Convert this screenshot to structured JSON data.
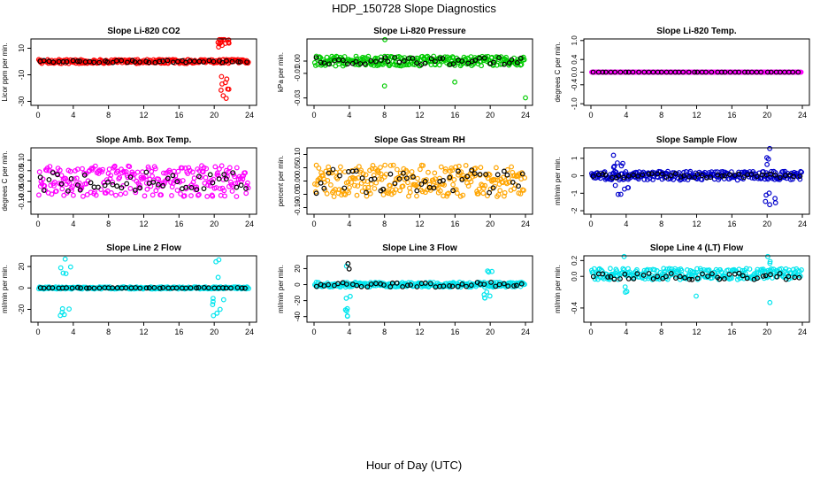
{
  "figure": {
    "title": "HDP_150728  Slope Diagnostics",
    "xlabel": "Hour of Day (UTC)"
  },
  "chart_data": [
    {
      "type": "scatter",
      "title": "Slope Li-820 CO2",
      "ylabel": "Licor ppm per min.",
      "xlim": [
        0,
        24
      ],
      "ylim": [
        -33,
        17
      ],
      "xticks": [
        0,
        4,
        8,
        12,
        16,
        20,
        24
      ],
      "yticks": [
        -30,
        -10,
        10
      ],
      "xtick_labels": [
        "0",
        "4",
        "8",
        "12",
        "16",
        "20",
        "24"
      ],
      "ytick_labels": [
        "-30",
        "-10",
        "10"
      ],
      "series": [
        {
          "name": "raw",
          "color": "#ff0000",
          "pattern": {
            "base": 0,
            "noise": 1.5,
            "spikes": [
              {
                "from": 20.3,
                "to": 21.8,
                "amp": 28,
                "n": 22
              }
            ]
          }
        },
        {
          "name": "hourly",
          "color": "#000000",
          "pattern": {
            "base": 0,
            "noise": 0.8,
            "spikes": []
          }
        }
      ]
    },
    {
      "type": "scatter",
      "title": "Slope Li-820 Pressure",
      "ylabel": "kPa per min.",
      "xlim": [
        0,
        24
      ],
      "ylim": [
        -0.036,
        0.018
      ],
      "xticks": [
        0,
        4,
        8,
        12,
        16,
        20,
        24
      ],
      "yticks": [
        -0.03,
        -0.01,
        0.0
      ],
      "xtick_labels": [
        "0",
        "4",
        "8",
        "12",
        "16",
        "20",
        "24"
      ],
      "ytick_labels": [
        "-0.03",
        "-0.01",
        "0.00"
      ],
      "series": [
        {
          "name": "raw",
          "color": "#00cc00",
          "pattern": {
            "base": 0.0,
            "noise": 0.004,
            "spikes": [
              {
                "from": 7.9,
                "to": 8.1,
                "amp": 0.03,
                "n": 2
              },
              {
                "from": 15.9,
                "to": 16.1,
                "amp": 0.027,
                "n": 1
              },
              {
                "from": 23.9,
                "to": 24.0,
                "amp": 0.034,
                "n": 1
              }
            ]
          }
        },
        {
          "name": "hourly",
          "color": "#000000",
          "pattern": {
            "base": 0.0,
            "noise": 0.003,
            "spikes": []
          }
        }
      ]
    },
    {
      "type": "scatter",
      "title": "Slope Li-820 Temp.",
      "ylabel": "degrees C per min.",
      "xlim": [
        0,
        24
      ],
      "ylim": [
        -1.05,
        1.05
      ],
      "xticks": [
        0,
        4,
        8,
        12,
        16,
        20,
        24
      ],
      "yticks": [
        -1.0,
        -0.4,
        0.0,
        0.4,
        1.0
      ],
      "xtick_labels": [
        "0",
        "4",
        "8",
        "12",
        "16",
        "20",
        "24"
      ],
      "ytick_labels": [
        "-1.0",
        "-0.4",
        "0.0",
        "0.4",
        "1.0"
      ],
      "series": [
        {
          "name": "raw",
          "color": "#ff00ff",
          "pattern": {
            "base": 0.0,
            "noise": 0.0,
            "spikes": []
          }
        },
        {
          "name": "hourly",
          "color": "#000000",
          "pattern": {
            "base": 0.0,
            "noise": 0.0,
            "spikes": []
          }
        }
      ]
    },
    {
      "type": "scatter",
      "title": "Slope Amb. Box Temp.",
      "ylabel": "degrees C per min.",
      "xlim": [
        0,
        24
      ],
      "ylim": [
        -0.16,
        0.16
      ],
      "xticks": [
        0,
        4,
        8,
        12,
        16,
        20,
        24
      ],
      "yticks": [
        -0.1,
        -0.05,
        0.0,
        0.05,
        0.1
      ],
      "xtick_labels": [
        "0",
        "4",
        "8",
        "12",
        "16",
        "20",
        "24"
      ],
      "ytick_labels": [
        "-0.10",
        "-0.05",
        "0.00",
        "0.05",
        "0.10"
      ],
      "series": [
        {
          "name": "raw",
          "color": "#ff00ff",
          "pattern": {
            "base": 0.0,
            "noise": 0.075,
            "spikes": []
          }
        },
        {
          "name": "hourly",
          "color": "#000000",
          "pattern": {
            "base": 0.0,
            "noise": 0.05,
            "spikes": []
          }
        }
      ]
    },
    {
      "type": "scatter",
      "title": "Slope Gas Stream RH",
      "ylabel": "percent per min.",
      "xlim": [
        0,
        24
      ],
      "ylim": [
        -0.125,
        0.125
      ],
      "xticks": [
        0,
        4,
        8,
        12,
        16,
        20,
        24
      ],
      "yticks": [
        -0.1,
        -0.05,
        0.0,
        0.05,
        0.1
      ],
      "xtick_labels": [
        "0",
        "4",
        "8",
        "12",
        "16",
        "20",
        "24"
      ],
      "ytick_labels": [
        "-0.10",
        "-0.05",
        "0.00",
        "0.05",
        "0.10"
      ],
      "series": [
        {
          "name": "raw",
          "color": "#ffa500",
          "pattern": {
            "base": 0.0,
            "noise": 0.06,
            "spikes": []
          }
        },
        {
          "name": "hourly",
          "color": "#000000",
          "pattern": {
            "base": 0.0,
            "noise": 0.05,
            "spikes": []
          }
        }
      ]
    },
    {
      "type": "scatter",
      "title": "Slope Sample Flow",
      "ylabel": "ml/min per min.",
      "xlim": [
        0,
        24
      ],
      "ylim": [
        -2.2,
        1.6
      ],
      "xticks": [
        0,
        4,
        8,
        12,
        16,
        20,
        24
      ],
      "yticks": [
        -2,
        -1,
        0,
        1
      ],
      "xtick_labels": [
        "0",
        "4",
        "8",
        "12",
        "16",
        "20",
        "24"
      ],
      "ytick_labels": [
        "-2",
        "-1",
        "0",
        "1"
      ],
      "series": [
        {
          "name": "raw",
          "color": "#0000cc",
          "pattern": {
            "base": 0.0,
            "noise": 0.25,
            "spikes": [
              {
                "from": 2.5,
                "to": 4.5,
                "amp": 1.2,
                "n": 12
              },
              {
                "from": 19.8,
                "to": 21.0,
                "amp": 1.8,
                "n": 10
              }
            ]
          }
        },
        {
          "name": "hourly",
          "color": "#000000",
          "pattern": {
            "base": 0.0,
            "noise": 0.12,
            "spikes": []
          }
        }
      ]
    },
    {
      "type": "scatter",
      "title": "Slope Line 2 Flow",
      "ylabel": "ml/min per min.",
      "xlim": [
        0,
        24
      ],
      "ylim": [
        -32,
        30
      ],
      "xticks": [
        0,
        4,
        8,
        12,
        16,
        20,
        24
      ],
      "yticks": [
        -20,
        0,
        20
      ],
      "xtick_labels": [
        "0",
        "4",
        "8",
        "12",
        "16",
        "20",
        "24"
      ],
      "ytick_labels": [
        "-20",
        "0",
        "20"
      ],
      "series": [
        {
          "name": "raw",
          "color": "#00e5ee",
          "pattern": {
            "base": 0.0,
            "noise": 1.0,
            "spikes": [
              {
                "from": 2.5,
                "to": 3.8,
                "amp": 27,
                "n": 10
              },
              {
                "from": 19.8,
                "to": 21.2,
                "amp": 27,
                "n": 10
              }
            ]
          }
        },
        {
          "name": "hourly",
          "color": "#000000",
          "pattern": {
            "base": 0.0,
            "noise": 0.3,
            "spikes": []
          }
        }
      ]
    },
    {
      "type": "scatter",
      "title": "Slope Line 3 Flow",
      "ylabel": "ml/min per min.",
      "xlim": [
        0,
        24
      ],
      "ylim": [
        -47,
        36
      ],
      "xticks": [
        0,
        4,
        8,
        12,
        16,
        20,
        24
      ],
      "yticks": [
        -40,
        -20,
        0,
        20
      ],
      "xtick_labels": [
        "0",
        "4",
        "8",
        "12",
        "16",
        "20",
        "24"
      ],
      "ytick_labels": [
        "-40",
        "-20",
        "0",
        "20"
      ],
      "series": [
        {
          "name": "raw",
          "color": "#00e5ee",
          "pattern": {
            "base": 0.0,
            "noise": 3.0,
            "spikes": [
              {
                "from": 3.5,
                "to": 4.3,
                "amp": 40,
                "n": 8
              },
              {
                "from": 19.0,
                "to": 20.2,
                "amp": 20,
                "n": 8
              }
            ]
          }
        },
        {
          "name": "hourly",
          "color": "#000000",
          "pattern": {
            "base": 0.0,
            "noise": 3.0,
            "spikes": [
              {
                "from": 3.8,
                "to": 4.0,
                "amp": 30,
                "n": 2
              }
            ]
          }
        }
      ]
    },
    {
      "type": "scatter",
      "title": "Slope Line 4 (LT) Flow",
      "ylabel": "ml/min per min.",
      "xlim": [
        0,
        24
      ],
      "ylim": [
        -0.58,
        0.26
      ],
      "xticks": [
        0,
        4,
        8,
        12,
        16,
        20,
        24
      ],
      "yticks": [
        -0.4,
        0.0,
        0.2
      ],
      "xtick_labels": [
        "0",
        "4",
        "8",
        "12",
        "16",
        "20",
        "24"
      ],
      "ytick_labels": [
        "-0.4",
        "0.0",
        "0.2"
      ],
      "series": [
        {
          "name": "raw",
          "color": "#00e5ee",
          "pattern": {
            "base": 0.03,
            "noise": 0.07,
            "spikes": [
              {
                "from": 3.6,
                "to": 4.2,
                "amp": 0.38,
                "n": 4
              },
              {
                "from": 11.9,
                "to": 12.1,
                "amp": 0.55,
                "n": 1
              },
              {
                "from": 19.8,
                "to": 20.4,
                "amp": 0.38,
                "n": 4
              }
            ]
          }
        },
        {
          "name": "hourly",
          "color": "#000000",
          "pattern": {
            "base": 0.0,
            "noise": 0.04,
            "spikes": []
          }
        }
      ]
    }
  ]
}
